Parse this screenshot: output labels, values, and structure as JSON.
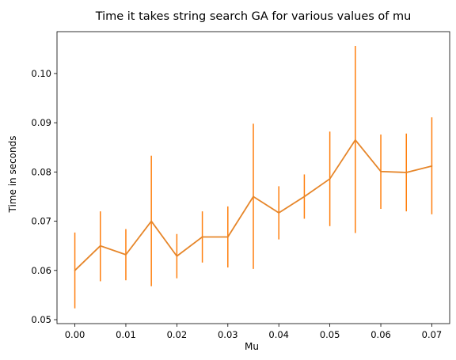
{
  "chart_data": {
    "type": "line",
    "title": "Time it takes string search GA for various values of mu",
    "xlabel": "Mu",
    "ylabel": "Time in seconds",
    "xlim": [
      -0.0035,
      0.0735
    ],
    "ylim": [
      0.0492,
      0.1085
    ],
    "xticks": [
      0.0,
      0.01,
      0.02,
      0.03,
      0.04,
      0.05,
      0.06,
      0.07
    ],
    "xtick_labels": [
      "0.00",
      "0.01",
      "0.02",
      "0.03",
      "0.04",
      "0.05",
      "0.06",
      "0.07"
    ],
    "yticks": [
      0.05,
      0.06,
      0.07,
      0.08,
      0.09,
      0.1
    ],
    "ytick_labels": [
      "0.05",
      "0.06",
      "0.07",
      "0.08",
      "0.09",
      "0.10"
    ],
    "grid": false,
    "series_color": "#ff7f0e",
    "line_color": "#e6862a",
    "series": [
      {
        "x": [
          0.0,
          0.005,
          0.01,
          0.015,
          0.02,
          0.025,
          0.03,
          0.035,
          0.04,
          0.045,
          0.05,
          0.055,
          0.06,
          0.065,
          0.07
        ],
        "y": [
          0.06,
          0.065,
          0.0632,
          0.07,
          0.0629,
          0.0668,
          0.0668,
          0.075,
          0.0717,
          0.075,
          0.0786,
          0.0865,
          0.0801,
          0.0799,
          0.0812
        ],
        "yerr_low": [
          0.0523,
          0.0578,
          0.058,
          0.0568,
          0.0584,
          0.0616,
          0.0606,
          0.0603,
          0.0663,
          0.0705,
          0.069,
          0.0676,
          0.0725,
          0.072,
          0.0714
        ],
        "yerr_high": [
          0.0677,
          0.072,
          0.0684,
          0.0833,
          0.0674,
          0.072,
          0.073,
          0.0898,
          0.0771,
          0.0795,
          0.0882,
          0.1056,
          0.0876,
          0.0878,
          0.0911
        ]
      }
    ]
  }
}
